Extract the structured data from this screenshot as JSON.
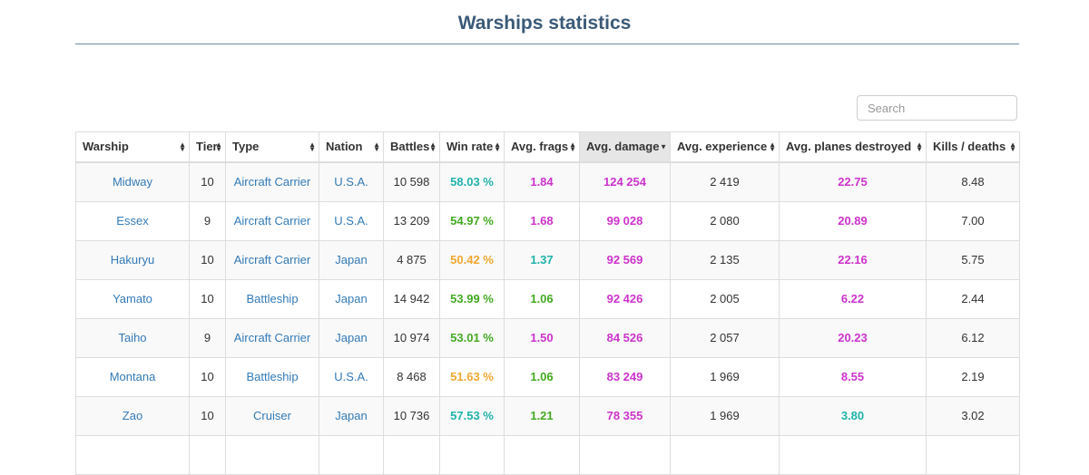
{
  "page": {
    "title": "Warships statistics"
  },
  "search": {
    "placeholder": "Search"
  },
  "table": {
    "headers": [
      "Warship",
      "Tier",
      "Type",
      "Nation",
      "Battles",
      "Win rate",
      "Avg. frags",
      "Avg. damage",
      "Avg. experience",
      "Avg. planes destroyed",
      "Kills / deaths"
    ],
    "sorted_column": 7,
    "sorted_direction": "desc",
    "rows": [
      {
        "warship": "Midway",
        "tier": "10",
        "type": "Aircraft Carrier",
        "nation": "U.S.A.",
        "battles": "10 598",
        "win_rate": "58.03 %",
        "avg_frags": "1.84",
        "avg_damage": "124 254",
        "avg_experience": "2 419",
        "avg_planes": "22.75",
        "kd": "8.48"
      },
      {
        "warship": "Essex",
        "tier": "9",
        "type": "Aircraft Carrier",
        "nation": "U.S.A.",
        "battles": "13 209",
        "win_rate": "54.97 %",
        "avg_frags": "1.68",
        "avg_damage": "99 028",
        "avg_experience": "2 080",
        "avg_planes": "20.89",
        "kd": "7.00"
      },
      {
        "warship": "Hakuryu",
        "tier": "10",
        "type": "Aircraft Carrier",
        "nation": "Japan",
        "battles": "4 875",
        "win_rate": "50.42 %",
        "avg_frags": "1.37",
        "avg_damage": "92 569",
        "avg_experience": "2 135",
        "avg_planes": "22.16",
        "kd": "5.75"
      },
      {
        "warship": "Yamato",
        "tier": "10",
        "type": "Battleship",
        "nation": "Japan",
        "battles": "14 942",
        "win_rate": "53.99 %",
        "avg_frags": "1.06",
        "avg_damage": "92 426",
        "avg_experience": "2 005",
        "avg_planes": "6.22",
        "kd": "2.44"
      },
      {
        "warship": "Taiho",
        "tier": "9",
        "type": "Aircraft Carrier",
        "nation": "Japan",
        "battles": "10 974",
        "win_rate": "53.01 %",
        "avg_frags": "1.50",
        "avg_damage": "84 526",
        "avg_experience": "2 057",
        "avg_planes": "20.23",
        "kd": "6.12"
      },
      {
        "warship": "Montana",
        "tier": "10",
        "type": "Battleship",
        "nation": "U.S.A.",
        "battles": "8 468",
        "win_rate": "51.63 %",
        "avg_frags": "1.06",
        "avg_damage": "83 249",
        "avg_experience": "1 969",
        "avg_planes": "8.55",
        "kd": "2.19"
      },
      {
        "warship": "Zao",
        "tier": "10",
        "type": "Cruiser",
        "nation": "Japan",
        "battles": "10 736",
        "win_rate": "57.53 %",
        "avg_frags": "1.21",
        "avg_damage": "78 355",
        "avg_experience": "1 969",
        "avg_planes": "3.80",
        "kd": "3.02"
      },
      {
        "warship": "",
        "tier": "",
        "type": "",
        "nation": "",
        "battles": "",
        "win_rate": "",
        "avg_frags": "",
        "avg_damage": "",
        "avg_experience": "",
        "avg_planes": "",
        "kd": ""
      }
    ]
  },
  "colors": {
    "title": "#3a5a78",
    "link": "#337ab7",
    "purple": "#cc33cc",
    "teal": "#20b2aa",
    "green": "#44aa22",
    "orange": "#f0a830",
    "sorted_header_bg": "#e6e6e6"
  },
  "cell_colors": [
    {
      "win_rate": "teal",
      "avg_frags": "purple",
      "avg_damage": "purple",
      "avg_planes": "purple"
    },
    {
      "win_rate": "green",
      "avg_frags": "purple",
      "avg_damage": "purple",
      "avg_planes": "purple"
    },
    {
      "win_rate": "orange",
      "avg_frags": "teal",
      "avg_damage": "purple",
      "avg_planes": "purple"
    },
    {
      "win_rate": "green",
      "avg_frags": "green",
      "avg_damage": "purple",
      "avg_planes": "purple"
    },
    {
      "win_rate": "green",
      "avg_frags": "purple",
      "avg_damage": "purple",
      "avg_planes": "purple"
    },
    {
      "win_rate": "orange",
      "avg_frags": "green",
      "avg_damage": "purple",
      "avg_planes": "purple"
    },
    {
      "win_rate": "teal",
      "avg_frags": "green",
      "avg_damage": "purple",
      "avg_planes": "teal"
    },
    {
      "win_rate": "teal",
      "avg_frags": "teal",
      "avg_damage": "purple",
      "avg_planes": "teal"
    }
  ],
  "icons": {
    "sort": "sort-arrows-icon"
  }
}
